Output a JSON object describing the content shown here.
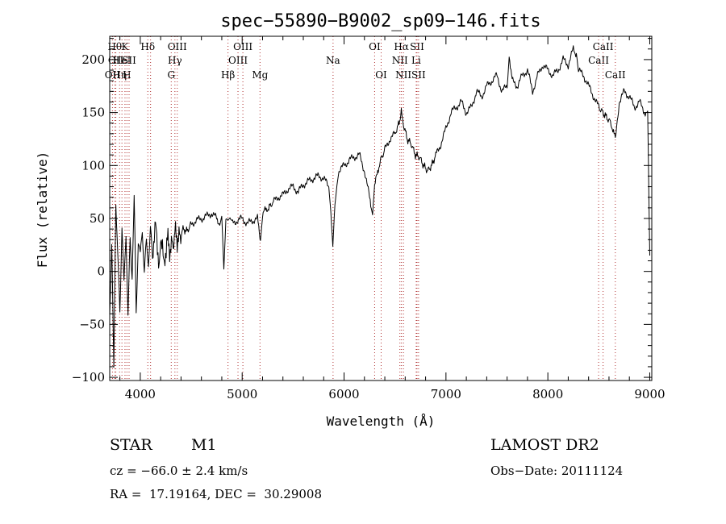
{
  "chart_data": {
    "type": "line",
    "title": "spec−55890−B9002_sp09−146.fits",
    "xlabel": "Wavelength (Å)",
    "ylabel": "Flux (relative)",
    "xlim": [
      3700,
      9020
    ],
    "ylim": [
      -103,
      222
    ],
    "xticks": [
      4000,
      5000,
      6000,
      7000,
      8000,
      9000
    ],
    "xtick_labels": [
      "4000",
      "5000",
      "6000",
      "7000",
      "8000",
      "9000"
    ],
    "yticks": [
      -100,
      -50,
      0,
      50,
      100,
      150,
      200
    ],
    "ytick_labels": [
      "−100",
      "−50",
      "0",
      "50",
      "100",
      "150",
      "200"
    ],
    "series": [
      {
        "x": [
          3700,
          3720,
          3740,
          3760,
          3780,
          3800,
          3820,
          3840,
          3860,
          3880,
          3900,
          3920,
          3940,
          3960,
          3980,
          4000,
          4020,
          4040,
          4060,
          4080,
          4100,
          4120,
          4150,
          4180,
          4200,
          4230,
          4260,
          4300,
          4340,
          4380,
          4420,
          4460,
          4500,
          4550,
          4600,
          4650,
          4700,
          4750,
          4780,
          4800,
          4820,
          4840,
          4860,
          4880,
          4900,
          4950,
          5000,
          5050,
          5100,
          5150,
          5180,
          5200,
          5230,
          5260,
          5300,
          5350,
          5400,
          5450,
          5500,
          5550,
          5600,
          5650,
          5700,
          5750,
          5800,
          5850,
          5870,
          5890,
          5910,
          5930,
          5950,
          6000,
          6050,
          6100,
          6150,
          6200,
          6250,
          6280,
          6300,
          6330,
          6360,
          6400,
          6450,
          6500,
          6540,
          6562,
          6580,
          6620,
          6660,
          6700,
          6740,
          6780,
          6820,
          6860,
          6900,
          6950,
          7000,
          7050,
          7100,
          7150,
          7200,
          7250,
          7300,
          7350,
          7400,
          7450,
          7500,
          7550,
          7600,
          7620,
          7650,
          7700,
          7750,
          7800,
          7850,
          7900,
          7950,
          8000,
          8050,
          8100,
          8150,
          8200,
          8250,
          8280,
          8300,
          8350,
          8400,
          8450,
          8500,
          8540,
          8580,
          8620,
          8662,
          8700,
          8750,
          8800,
          8850,
          8900,
          8950,
          8980,
          9000
        ],
        "y": [
          -30,
          30,
          -90,
          70,
          10,
          -40,
          40,
          -20,
          30,
          -50,
          20,
          -10,
          60,
          -45,
          25,
          10,
          40,
          0,
          30,
          15,
          45,
          20,
          40,
          15,
          35,
          5,
          30,
          20,
          35,
          30,
          40,
          38,
          45,
          48,
          50,
          52,
          55,
          50,
          45,
          50,
          2,
          48,
          45,
          50,
          45,
          48,
          50,
          45,
          48,
          50,
          30,
          55,
          58,
          60,
          65,
          70,
          72,
          78,
          80,
          75,
          82,
          85,
          88,
          90,
          88,
          80,
          60,
          25,
          65,
          85,
          95,
          100,
          105,
          108,
          110,
          95,
          70,
          55,
          80,
          95,
          105,
          115,
          125,
          130,
          140,
          150,
          140,
          125,
          120,
          110,
          108,
          100,
          95,
          100,
          110,
          120,
          135,
          150,
          155,
          160,
          150,
          155,
          170,
          165,
          175,
          180,
          185,
          170,
          175,
          205,
          180,
          175,
          185,
          190,
          170,
          185,
          195,
          190,
          185,
          190,
          200,
          195,
          210,
          205,
          190,
          185,
          175,
          165,
          155,
          150,
          145,
          140,
          125,
          160,
          170,
          165,
          155,
          160,
          150,
          148,
          15
        ]
      }
    ],
    "line_markers": [
      {
        "wave": 3727,
        "label": "OII",
        "row": 3
      },
      {
        "wave": 3750,
        "label": "Hθ",
        "row": 1
      },
      {
        "wave": 3760,
        "label": "OII",
        "row": 2
      },
      {
        "wave": 3797,
        "label": "Hη",
        "row": 3
      },
      {
        "wave": 3820,
        "label": "HeI",
        "row": 2
      },
      {
        "wave": 3850,
        "label": "K",
        "row": 1
      },
      {
        "wave": 3869,
        "label": "H",
        "row": 3
      },
      {
        "wave": 3890,
        "label": "SII",
        "row": 2
      },
      {
        "wave": 4074,
        "label": "Hδ",
        "row": 1
      },
      {
        "wave": 4101,
        "label": "",
        "row": 0
      },
      {
        "wave": 4304,
        "label": "G",
        "row": 3
      },
      {
        "wave": 4340,
        "label": "Hγ",
        "row": 2
      },
      {
        "wave": 4363,
        "label": "OIII",
        "row": 1
      },
      {
        "wave": 4861,
        "label": "Hβ",
        "row": 3
      },
      {
        "wave": 4959,
        "label": "OIII",
        "row": 2
      },
      {
        "wave": 5007,
        "label": "OIII",
        "row": 1
      },
      {
        "wave": 5175,
        "label": "Mg",
        "row": 3
      },
      {
        "wave": 5892,
        "label": "Na",
        "row": 2
      },
      {
        "wave": 6300,
        "label": "OI",
        "row": 1
      },
      {
        "wave": 6364,
        "label": "OI",
        "row": 3
      },
      {
        "wave": 6548,
        "label": "NII",
        "row": 2
      },
      {
        "wave": 6563,
        "label": "Hα",
        "row": 1
      },
      {
        "wave": 6583,
        "label": "NII",
        "row": 3
      },
      {
        "wave": 6708,
        "label": "Li",
        "row": 2
      },
      {
        "wave": 6716,
        "label": "SII",
        "row": 1
      },
      {
        "wave": 6731,
        "label": "SII",
        "row": 3
      },
      {
        "wave": 8498,
        "label": "CaII",
        "row": 2
      },
      {
        "wave": 8542,
        "label": "CaII",
        "row": 1
      },
      {
        "wave": 8662,
        "label": "CaII",
        "row": 3
      }
    ]
  },
  "footer": {
    "object_type": "STAR",
    "subclass": "M1",
    "survey": "LAMOST DR2",
    "redshift": "cz = −66.0 ± 2.4 km/s",
    "obs_date": "Obs−Date: 20111124",
    "coords": "RA =  17.19164, DEC =  30.29008"
  }
}
